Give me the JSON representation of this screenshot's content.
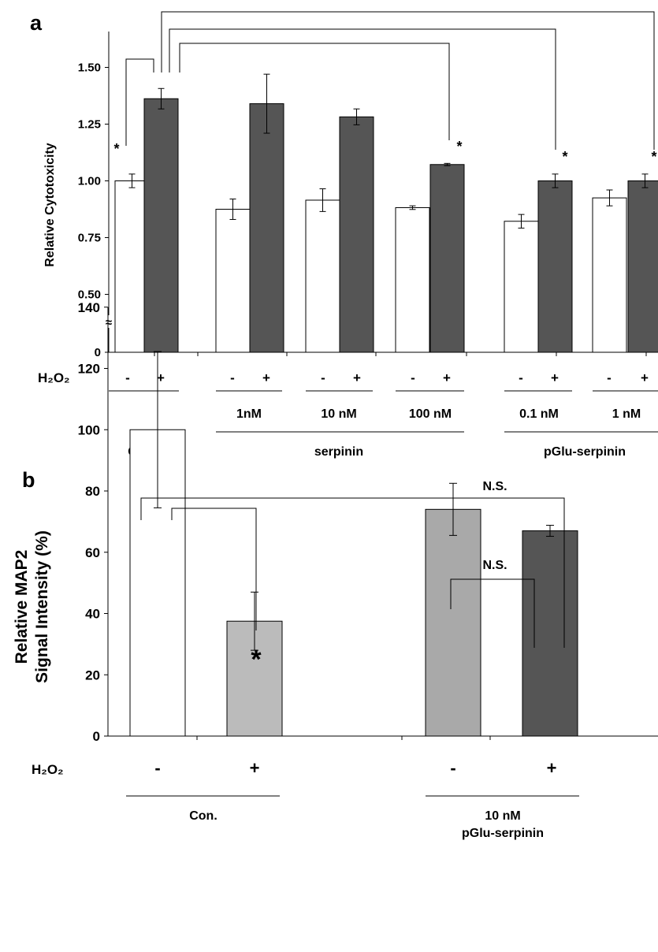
{
  "chart_data": [
    {
      "panel": "a",
      "type": "bar",
      "ylabel": "Relative Cytotoxicity",
      "y_ticks": [
        "0",
        "0.50",
        "0.75",
        "1.00",
        "1.25",
        "1.50"
      ],
      "axis_break": "≈",
      "treatment_label": "H₂O₂",
      "series": [
        {
          "colors": [
            "#ffffff"
          ],
          "values": [
            1.0,
            0.875,
            0.915,
            0.882,
            0.822,
            0.925
          ],
          "errors": [
            0.03,
            0.045,
            0.05,
            0.008,
            0.03,
            0.035
          ]
        },
        {
          "colors": [
            "#555555"
          ],
          "values": [
            1.362,
            1.34,
            1.282,
            1.072,
            1.0,
            1.0
          ],
          "errors": [
            0.045,
            0.13,
            0.035,
            0.005,
            0.03,
            0.03
          ]
        }
      ],
      "bar_signs": [
        "-",
        "+",
        "-",
        "+",
        "-",
        "+",
        "-",
        "+",
        "-",
        "+",
        "-",
        "+"
      ],
      "dose_labels": [
        "1nM",
        "10 nM",
        "100 nM",
        "0.1 nM",
        "1 nM"
      ],
      "group_labels": [
        "Con.",
        "serpinin",
        "pGlu-serpinin"
      ],
      "significance": "*"
    },
    {
      "panel": "b",
      "type": "bar",
      "ylabel_line1": "Relative MAP2",
      "ylabel_line2": "Signal Intensity (%)",
      "y_ticks": [
        "0",
        "20",
        "40",
        "60",
        "80",
        "100",
        "120",
        "140"
      ],
      "ylim": [
        0,
        140
      ],
      "treatment_label": "H₂O₂",
      "bars": [
        {
          "sign": "-",
          "value": 100,
          "error": 25.5,
          "color": "#ffffff"
        },
        {
          "sign": "+",
          "value": 37.5,
          "error": 9.5,
          "color": "#bbbbbb"
        },
        {
          "sign": "-",
          "value": 74,
          "error": 8.5,
          "color": "#a9a9a9"
        },
        {
          "sign": "+",
          "value": 67,
          "error": 1.8,
          "color": "#555555"
        }
      ],
      "group_labels": [
        "Con.",
        "10 nM",
        "pGlu-serpinin"
      ],
      "significance": "*",
      "not_significant": "N.S."
    }
  ]
}
